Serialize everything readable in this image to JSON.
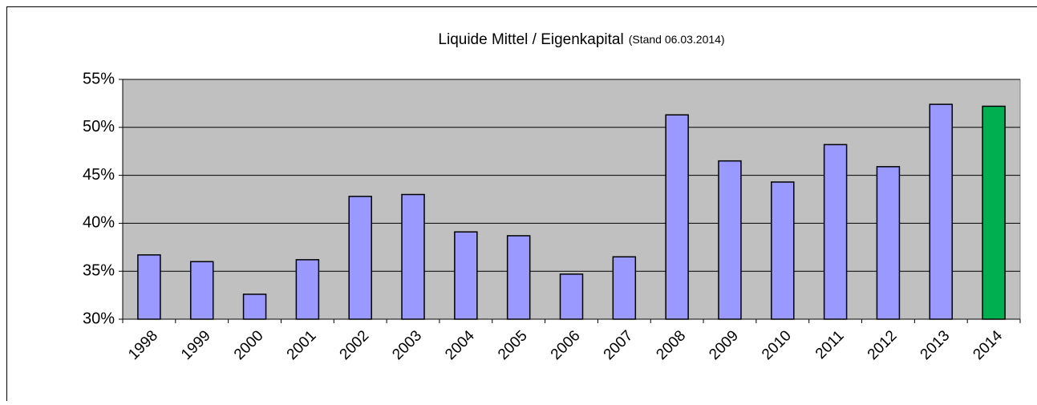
{
  "chart_data": {
    "type": "bar",
    "title": "Liquide Mittel / Eigenkapital",
    "subtitle": "(Stand 06.03.2014)",
    "categories": [
      "1998",
      "1999",
      "2000",
      "2001",
      "2002",
      "2003",
      "2004",
      "2005",
      "2006",
      "2007",
      "2008",
      "2009",
      "2010",
      "2011",
      "2012",
      "2013",
      "2014"
    ],
    "values": [
      36.7,
      36.0,
      32.6,
      36.2,
      42.8,
      43.0,
      39.1,
      38.7,
      34.7,
      36.5,
      51.3,
      46.5,
      44.3,
      48.2,
      45.9,
      52.4,
      52.2
    ],
    "colors": [
      "#9999ff",
      "#9999ff",
      "#9999ff",
      "#9999ff",
      "#9999ff",
      "#9999ff",
      "#9999ff",
      "#9999ff",
      "#9999ff",
      "#9999ff",
      "#9999ff",
      "#9999ff",
      "#9999ff",
      "#9999ff",
      "#9999ff",
      "#9999ff",
      "#00b050"
    ],
    "ylim": [
      30,
      55
    ],
    "yticks": [
      {
        "value": 30,
        "label": "30%"
      },
      {
        "value": 35,
        "label": "35%"
      },
      {
        "value": 40,
        "label": "40%"
      },
      {
        "value": 45,
        "label": "45%"
      },
      {
        "value": 50,
        "label": "50%"
      },
      {
        "value": 55,
        "label": "55%"
      }
    ],
    "grid": true,
    "plot_background": "#c0c0c0"
  }
}
